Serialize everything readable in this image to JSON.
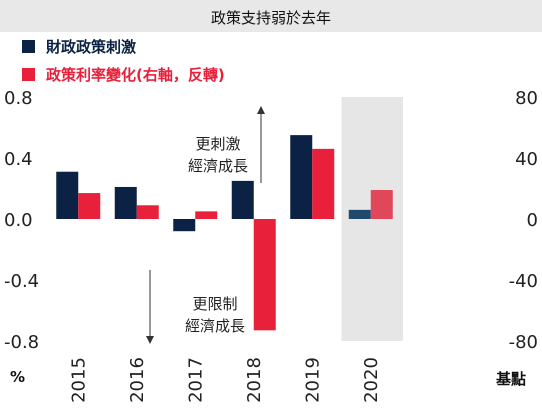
{
  "chart_data": {
    "type": "bar",
    "title": "政策支持弱於去年",
    "categories": [
      "2015",
      "2016",
      "2017",
      "2018",
      "2019",
      "2020"
    ],
    "series": [
      {
        "name": "財政政策刺激",
        "axis": "left",
        "color": "#0b2244",
        "values": [
          0.31,
          0.21,
          -0.08,
          0.25,
          0.55,
          0.06
        ]
      },
      {
        "name": "政策利率變化(右軸，反轉)",
        "axis": "right",
        "color": "#e8203a",
        "values": [
          17,
          9,
          5,
          -73,
          46,
          19
        ]
      }
    ],
    "y_left": {
      "label": "%",
      "ticks": [
        "0.8",
        "0.4",
        "0.0",
        "-0.4",
        "-0.8"
      ],
      "lim": [
        -0.8,
        0.8
      ]
    },
    "y_right": {
      "label": "基點",
      "ticks": [
        "80",
        "40",
        "0",
        "-40",
        "-80"
      ],
      "lim": [
        -80,
        80
      ]
    },
    "highlight_category": "2020",
    "highlight_color": "#e6e6e6",
    "highlight_series_colors": [
      "#1f4a6e",
      "#e0475a"
    ],
    "annotations": {
      "up": [
        "更刺激",
        "經濟成長"
      ],
      "down": [
        "更限制",
        "經濟成長"
      ]
    },
    "grid": false,
    "legend_position": "top-left"
  }
}
